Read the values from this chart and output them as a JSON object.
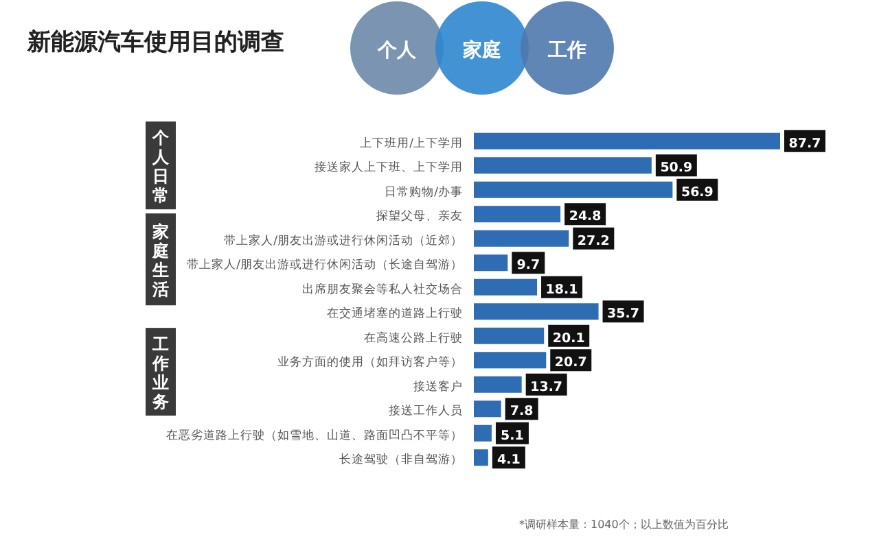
{
  "chart_data": {
    "type": "bar",
    "orientation": "horizontal",
    "title": "新能源汽车使用目的调查",
    "categories": [
      "上下班用/上下学用",
      "接送家人上下班、上下学用",
      "日常购物/办事",
      "探望父母、亲友",
      "带上家人/朋友出游或进行休闲活动（近郊）",
      "带上家人/朋友出游或进行休闲活动（长途自驾游）",
      "出席朋友聚会等私人社交场合",
      "在交通堵塞的道路上行驶",
      "在高速公路上行驶",
      "业务方面的使用（如拜访客户等）",
      "接送客户",
      "接送工作人员",
      "在恶劣道路上行驶（如雪地、山道、路面凹凸不平等）",
      "长途驾驶（非自驾游）"
    ],
    "values": [
      87.7,
      50.9,
      56.9,
      24.8,
      27.2,
      9.7,
      18.1,
      35.7,
      20.1,
      20.7,
      13.7,
      7.8,
      5.1,
      4.1
    ],
    "color": "#2e6db4",
    "data_labels": true,
    "annotations": [
      "个人",
      "家庭",
      "工作",
      "个人日常",
      "家庭生活",
      "工作业务",
      "*调研样本量：1040个；以上数值为百分比"
    ]
  }
}
